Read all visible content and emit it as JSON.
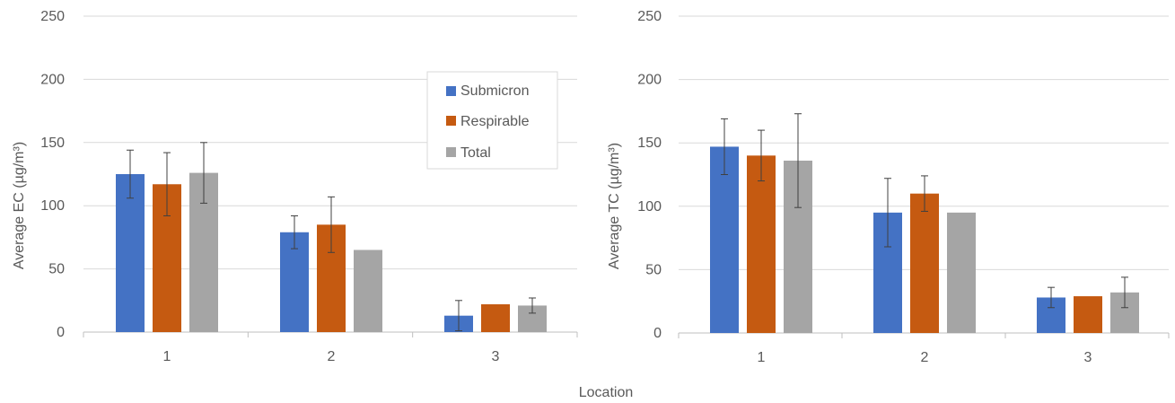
{
  "shared": {
    "xlabel": "Location",
    "categories": [
      "1",
      "2",
      "3"
    ],
    "series": [
      {
        "name": "Submicron",
        "color": "#4472C4"
      },
      {
        "name": "Respirable",
        "color": "#C55A11"
      },
      {
        "name": "Total",
        "color": "#A5A5A5"
      }
    ],
    "legend_placement": "inside top-right of left chart"
  },
  "chart_data": [
    {
      "type": "bar",
      "title": "",
      "xlabel": "Location",
      "ylabel": "Average EC (µg/m³)",
      "ylim": [
        0,
        250
      ],
      "yticks": [
        0,
        50,
        100,
        150,
        200,
        250
      ],
      "grid": true,
      "categories": [
        "1",
        "2",
        "3"
      ],
      "series": [
        {
          "name": "Submicron",
          "values": [
            125,
            79,
            13
          ],
          "errors": [
            19,
            13,
            12
          ]
        },
        {
          "name": "Respirable",
          "values": [
            117,
            85,
            22
          ],
          "errors": [
            25,
            22,
            0
          ]
        },
        {
          "name": "Total",
          "values": [
            126,
            65,
            21
          ],
          "errors": [
            24,
            0,
            6
          ]
        }
      ]
    },
    {
      "type": "bar",
      "title": "",
      "xlabel": "Location",
      "ylabel": "Average TC (µg/m³)",
      "ylim": [
        0,
        250
      ],
      "yticks": [
        0,
        50,
        100,
        150,
        200,
        250
      ],
      "grid": true,
      "categories": [
        "1",
        "2",
        "3"
      ],
      "series": [
        {
          "name": "Submicron",
          "values": [
            147,
            95,
            28
          ],
          "errors": [
            22,
            27,
            8
          ]
        },
        {
          "name": "Respirable",
          "values": [
            140,
            110,
            29
          ],
          "errors": [
            20,
            14,
            0
          ]
        },
        {
          "name": "Total",
          "values": [
            136,
            95,
            32
          ],
          "errors": [
            37,
            0,
            12
          ]
        }
      ]
    }
  ]
}
